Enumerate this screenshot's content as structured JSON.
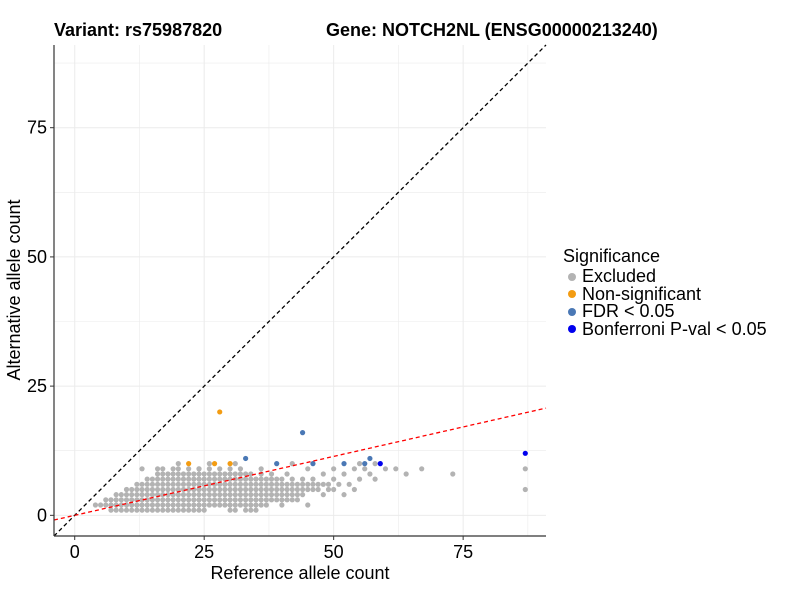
{
  "header": {
    "variant": "Variant: rs75987820",
    "gene": "Gene: NOTCH2NL (ENSG00000213240)"
  },
  "chart_data": {
    "type": "scatter",
    "xlabel": "Reference allele count",
    "ylabel": "Alternative allele count",
    "xlim": [
      -4,
      91
    ],
    "ylim": [
      -4,
      91
    ],
    "xticks": [
      0,
      25,
      50,
      75
    ],
    "yticks": [
      0,
      25,
      50,
      75
    ],
    "grid": true,
    "legend_position": "right",
    "legend": {
      "title": "Significance",
      "items": [
        {
          "label": "Excluded",
          "color": "#b3b3b3"
        },
        {
          "label": "Non-significant",
          "color": "#f39c12"
        },
        {
          "label": "FDR < 0.05",
          "color": "#4a78b5"
        },
        {
          "label": "Bonferroni P-val < 0.05",
          "color": "#0000ee"
        }
      ]
    },
    "reference_lines": [
      {
        "name": "identity",
        "slope": 1,
        "intercept": 0,
        "color": "#000000",
        "dash": true
      },
      {
        "name": "expected ratio",
        "slope": 0.228,
        "intercept": 0,
        "color": "#ff0000",
        "dash": true
      }
    ],
    "series": [
      {
        "name": "Excluded",
        "color": "#b3b3b3",
        "points": [
          [
            4,
            2
          ],
          [
            5,
            2
          ],
          [
            6,
            2
          ],
          [
            6,
            3
          ],
          [
            7,
            1
          ],
          [
            7,
            2
          ],
          [
            7,
            3
          ],
          [
            8,
            1
          ],
          [
            8,
            2
          ],
          [
            8,
            3
          ],
          [
            8,
            4
          ],
          [
            9,
            1
          ],
          [
            9,
            2
          ],
          [
            9,
            3
          ],
          [
            9,
            4
          ],
          [
            10,
            1
          ],
          [
            10,
            2
          ],
          [
            10,
            3
          ],
          [
            10,
            4
          ],
          [
            10,
            5
          ],
          [
            11,
            1
          ],
          [
            11,
            2
          ],
          [
            11,
            3
          ],
          [
            11,
            4
          ],
          [
            11,
            5
          ],
          [
            12,
            1
          ],
          [
            12,
            2
          ],
          [
            12,
            3
          ],
          [
            12,
            4
          ],
          [
            12,
            5
          ],
          [
            12,
            6
          ],
          [
            13,
            1
          ],
          [
            13,
            2
          ],
          [
            13,
            3
          ],
          [
            13,
            4
          ],
          [
            13,
            5
          ],
          [
            13,
            6
          ],
          [
            14,
            1
          ],
          [
            14,
            2
          ],
          [
            14,
            3
          ],
          [
            14,
            4
          ],
          [
            14,
            5
          ],
          [
            14,
            6
          ],
          [
            14,
            7
          ],
          [
            15,
            1
          ],
          [
            15,
            2
          ],
          [
            15,
            3
          ],
          [
            15,
            4
          ],
          [
            15,
            5
          ],
          [
            15,
            6
          ],
          [
            15,
            7
          ],
          [
            16,
            1
          ],
          [
            16,
            2
          ],
          [
            16,
            3
          ],
          [
            16,
            4
          ],
          [
            16,
            5
          ],
          [
            16,
            6
          ],
          [
            16,
            7
          ],
          [
            16,
            8
          ],
          [
            17,
            1
          ],
          [
            17,
            2
          ],
          [
            17,
            3
          ],
          [
            17,
            4
          ],
          [
            17,
            5
          ],
          [
            17,
            6
          ],
          [
            17,
            7
          ],
          [
            17,
            8
          ],
          [
            17,
            9
          ],
          [
            18,
            1
          ],
          [
            18,
            2
          ],
          [
            18,
            3
          ],
          [
            18,
            4
          ],
          [
            18,
            5
          ],
          [
            18,
            6
          ],
          [
            18,
            7
          ],
          [
            18,
            8
          ],
          [
            19,
            1
          ],
          [
            19,
            2
          ],
          [
            19,
            3
          ],
          [
            19,
            4
          ],
          [
            19,
            5
          ],
          [
            19,
            6
          ],
          [
            19,
            7
          ],
          [
            19,
            8
          ],
          [
            19,
            9
          ],
          [
            20,
            1
          ],
          [
            20,
            2
          ],
          [
            20,
            3
          ],
          [
            20,
            4
          ],
          [
            20,
            5
          ],
          [
            20,
            6
          ],
          [
            20,
            7
          ],
          [
            20,
            8
          ],
          [
            20,
            9
          ],
          [
            21,
            1
          ],
          [
            21,
            2
          ],
          [
            21,
            3
          ],
          [
            21,
            4
          ],
          [
            21,
            5
          ],
          [
            21,
            6
          ],
          [
            21,
            7
          ],
          [
            21,
            8
          ],
          [
            22,
            1
          ],
          [
            22,
            2
          ],
          [
            22,
            3
          ],
          [
            22,
            4
          ],
          [
            22,
            5
          ],
          [
            22,
            6
          ],
          [
            22,
            7
          ],
          [
            22,
            8
          ],
          [
            22,
            9
          ],
          [
            23,
            1
          ],
          [
            23,
            2
          ],
          [
            23,
            3
          ],
          [
            23,
            4
          ],
          [
            23,
            5
          ],
          [
            23,
            6
          ],
          [
            23,
            7
          ],
          [
            23,
            8
          ],
          [
            24,
            1
          ],
          [
            24,
            2
          ],
          [
            24,
            3
          ],
          [
            24,
            4
          ],
          [
            24,
            5
          ],
          [
            24,
            6
          ],
          [
            24,
            7
          ],
          [
            24,
            8
          ],
          [
            24,
            9
          ],
          [
            25,
            1
          ],
          [
            25,
            2
          ],
          [
            25,
            3
          ],
          [
            25,
            4
          ],
          [
            25,
            5
          ],
          [
            25,
            6
          ],
          [
            25,
            7
          ],
          [
            25,
            8
          ],
          [
            26,
            2
          ],
          [
            26,
            3
          ],
          [
            26,
            4
          ],
          [
            26,
            5
          ],
          [
            26,
            6
          ],
          [
            26,
            7
          ],
          [
            26,
            8
          ],
          [
            26,
            9
          ],
          [
            27,
            2
          ],
          [
            27,
            3
          ],
          [
            27,
            4
          ],
          [
            27,
            5
          ],
          [
            27,
            6
          ],
          [
            27,
            7
          ],
          [
            27,
            8
          ],
          [
            28,
            2
          ],
          [
            28,
            3
          ],
          [
            28,
            4
          ],
          [
            28,
            5
          ],
          [
            28,
            6
          ],
          [
            28,
            7
          ],
          [
            28,
            8
          ],
          [
            28,
            9
          ],
          [
            29,
            2
          ],
          [
            29,
            3
          ],
          [
            29,
            4
          ],
          [
            29,
            5
          ],
          [
            29,
            6
          ],
          [
            29,
            7
          ],
          [
            29,
            8
          ],
          [
            30,
            1
          ],
          [
            30,
            2
          ],
          [
            30,
            3
          ],
          [
            30,
            4
          ],
          [
            30,
            5
          ],
          [
            30,
            6
          ],
          [
            30,
            7
          ],
          [
            30,
            8
          ],
          [
            30,
            9
          ],
          [
            31,
            1
          ],
          [
            31,
            2
          ],
          [
            31,
            3
          ],
          [
            31,
            4
          ],
          [
            31,
            5
          ],
          [
            31,
            6
          ],
          [
            31,
            7
          ],
          [
            31,
            8
          ],
          [
            32,
            2
          ],
          [
            32,
            3
          ],
          [
            32,
            4
          ],
          [
            32,
            5
          ],
          [
            32,
            6
          ],
          [
            32,
            7
          ],
          [
            32,
            8
          ],
          [
            32,
            9
          ],
          [
            33,
            1
          ],
          [
            33,
            2
          ],
          [
            33,
            3
          ],
          [
            33,
            4
          ],
          [
            33,
            5
          ],
          [
            33,
            6
          ],
          [
            33,
            7
          ],
          [
            33,
            8
          ],
          [
            34,
            1
          ],
          [
            34,
            2
          ],
          [
            34,
            3
          ],
          [
            34,
            4
          ],
          [
            34,
            5
          ],
          [
            34,
            6
          ],
          [
            34,
            7
          ],
          [
            34,
            8
          ],
          [
            35,
            1
          ],
          [
            35,
            2
          ],
          [
            35,
            3
          ],
          [
            35,
            4
          ],
          [
            35,
            5
          ],
          [
            35,
            6
          ],
          [
            35,
            7
          ],
          [
            36,
            2
          ],
          [
            36,
            3
          ],
          [
            36,
            4
          ],
          [
            36,
            5
          ],
          [
            36,
            6
          ],
          [
            36,
            7
          ],
          [
            36,
            8
          ],
          [
            37,
            2
          ],
          [
            37,
            3
          ],
          [
            37,
            4
          ],
          [
            37,
            5
          ],
          [
            37,
            6
          ],
          [
            37,
            7
          ],
          [
            38,
            3
          ],
          [
            38,
            4
          ],
          [
            38,
            5
          ],
          [
            38,
            6
          ],
          [
            38,
            7
          ],
          [
            38,
            8
          ],
          [
            39,
            3
          ],
          [
            39,
            4
          ],
          [
            39,
            5
          ],
          [
            39,
            6
          ],
          [
            39,
            7
          ],
          [
            40,
            2
          ],
          [
            40,
            3
          ],
          [
            40,
            4
          ],
          [
            40,
            5
          ],
          [
            40,
            6
          ],
          [
            40,
            7
          ],
          [
            41,
            3
          ],
          [
            41,
            4
          ],
          [
            41,
            5
          ],
          [
            41,
            6
          ],
          [
            42,
            3
          ],
          [
            42,
            4
          ],
          [
            42,
            5
          ],
          [
            42,
            6
          ],
          [
            42,
            7
          ],
          [
            43,
            3
          ],
          [
            43,
            4
          ],
          [
            43,
            5
          ],
          [
            43,
            6
          ],
          [
            44,
            4
          ],
          [
            44,
            5
          ],
          [
            44,
            6
          ],
          [
            44,
            7
          ],
          [
            45,
            2
          ],
          [
            45,
            5
          ],
          [
            45,
            6
          ],
          [
            46,
            5
          ],
          [
            46,
            6
          ],
          [
            46,
            7
          ],
          [
            47,
            5
          ],
          [
            47,
            6
          ],
          [
            48,
            4
          ],
          [
            48,
            6
          ],
          [
            48,
            8
          ],
          [
            49,
            5
          ],
          [
            49,
            6
          ],
          [
            50,
            5
          ],
          [
            50,
            7
          ],
          [
            51,
            6
          ],
          [
            52,
            4
          ],
          [
            52,
            8
          ],
          [
            53,
            6
          ],
          [
            54,
            5
          ],
          [
            54,
            9
          ],
          [
            55,
            7
          ],
          [
            56,
            9
          ],
          [
            57,
            8
          ],
          [
            58,
            7
          ],
          [
            58,
            10
          ],
          [
            60,
            9
          ],
          [
            62,
            9
          ],
          [
            64,
            8
          ],
          [
            67,
            9
          ],
          [
            73,
            8
          ],
          [
            87,
            5
          ],
          [
            87,
            9
          ],
          [
            13,
            9
          ],
          [
            16,
            9
          ],
          [
            20,
            10
          ],
          [
            24,
            9
          ],
          [
            26,
            10
          ],
          [
            31,
            10
          ],
          [
            36,
            9
          ],
          [
            41,
            8
          ],
          [
            42,
            10
          ],
          [
            45,
            9
          ],
          [
            50,
            9
          ],
          [
            55,
            10
          ]
        ]
      },
      {
        "name": "Non-significant",
        "color": "#f39c12",
        "points": [
          [
            28,
            20
          ],
          [
            22,
            10
          ],
          [
            27,
            10
          ],
          [
            30,
            10
          ]
        ]
      },
      {
        "name": "FDR < 0.05",
        "color": "#4a78b5",
        "points": [
          [
            44,
            16
          ],
          [
            33,
            11
          ],
          [
            39,
            10
          ],
          [
            46,
            10
          ],
          [
            52,
            10
          ],
          [
            56,
            10
          ],
          [
            57,
            11
          ]
        ]
      },
      {
        "name": "Bonferroni P-val < 0.05",
        "color": "#0000ee",
        "points": [
          [
            87,
            12
          ],
          [
            59,
            10
          ]
        ]
      }
    ]
  }
}
